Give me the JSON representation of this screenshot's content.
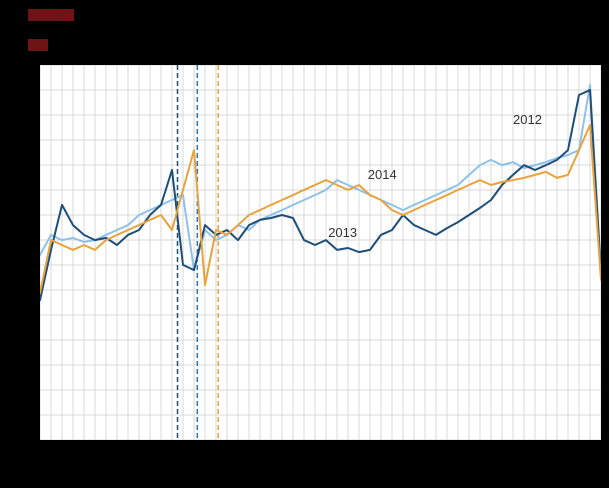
{
  "page": {
    "background_color": "#000000",
    "plot_background_color": "#ffffff",
    "title_fragment_color": "#6e1414"
  },
  "chart_data": {
    "type": "line",
    "title": "",
    "xlabel": "",
    "ylabel": "",
    "x_unit": "week",
    "x_range": [
      1,
      52
    ],
    "ylim": [
      0,
      100
    ],
    "grid": true,
    "grid_color": "#d9d9d9",
    "annotation_color": "#333333",
    "legend_position": "none",
    "series": [
      {
        "name": "2012",
        "color": "#8ec2ea",
        "values": [
          49.3,
          54.7,
          53.3,
          53.9,
          52.8,
          53.3,
          54.7,
          56,
          57.3,
          60,
          61.3,
          62.7,
          64,
          65.3,
          45.3,
          56,
          53.3,
          54.7,
          57.3,
          56,
          58.7,
          60,
          61.3,
          62.7,
          64,
          65.3,
          66.7,
          69.3,
          68,
          66.7,
          65.3,
          64,
          62.7,
          61.3,
          62.7,
          64,
          65.3,
          66.7,
          68,
          70.7,
          73.3,
          74.7,
          73.3,
          74.1,
          72.5,
          73.3,
          74.1,
          75.2,
          76,
          77.3,
          94.7,
          45.3
        ]
      },
      {
        "name": "2013",
        "color": "#1f4e79",
        "values": [
          37.3,
          50.7,
          62.7,
          57.3,
          54.7,
          53.3,
          53.9,
          52,
          54.7,
          56,
          60,
          62.7,
          72,
          46.7,
          45.3,
          57.3,
          54.7,
          56,
          53.3,
          57.3,
          58.7,
          59.2,
          60,
          59.2,
          53.3,
          52,
          53.3,
          50.7,
          51.2,
          50.1,
          50.7,
          54.7,
          56,
          60,
          57.3,
          56,
          54.7,
          56.5,
          58.1,
          60,
          61.9,
          64,
          68,
          70.7,
          73.3,
          72,
          73.3,
          74.7,
          77.3,
          92,
          93.3,
          44
        ]
      },
      {
        "name": "2014",
        "color": "#e8a33d",
        "values": [
          39.2,
          53.3,
          52,
          50.7,
          52,
          50.7,
          53.3,
          54.7,
          56,
          57.3,
          58.7,
          60,
          56,
          66.7,
          77.3,
          41.3,
          56,
          54.7,
          57.3,
          60,
          61.3,
          62.7,
          64,
          65.3,
          66.7,
          68,
          69.3,
          68,
          66.7,
          68,
          65.3,
          64,
          61.3,
          60,
          61.3,
          62.7,
          64,
          65.3,
          66.7,
          68,
          69.3,
          68,
          68.8,
          69.3,
          69.9,
          70.7,
          71.5,
          69.9,
          70.7,
          77.3,
          84,
          42.7
        ]
      }
    ],
    "event_lines": [
      {
        "name": "easter-week-2013",
        "week": 13.5,
        "color": "#1f4e79"
      },
      {
        "name": "easter-week-2012",
        "week": 15.3,
        "color": "#2e75b6"
      },
      {
        "name": "easter-week-2014",
        "week": 17.2,
        "color": "#e8a33d"
      }
    ],
    "annotations": [
      {
        "label": "2014",
        "week": 30.8,
        "value": 69.6
      },
      {
        "label": "2013",
        "week": 27.2,
        "value": 54.1
      },
      {
        "label": "2012",
        "week": 44.0,
        "value": 84.3
      }
    ]
  }
}
